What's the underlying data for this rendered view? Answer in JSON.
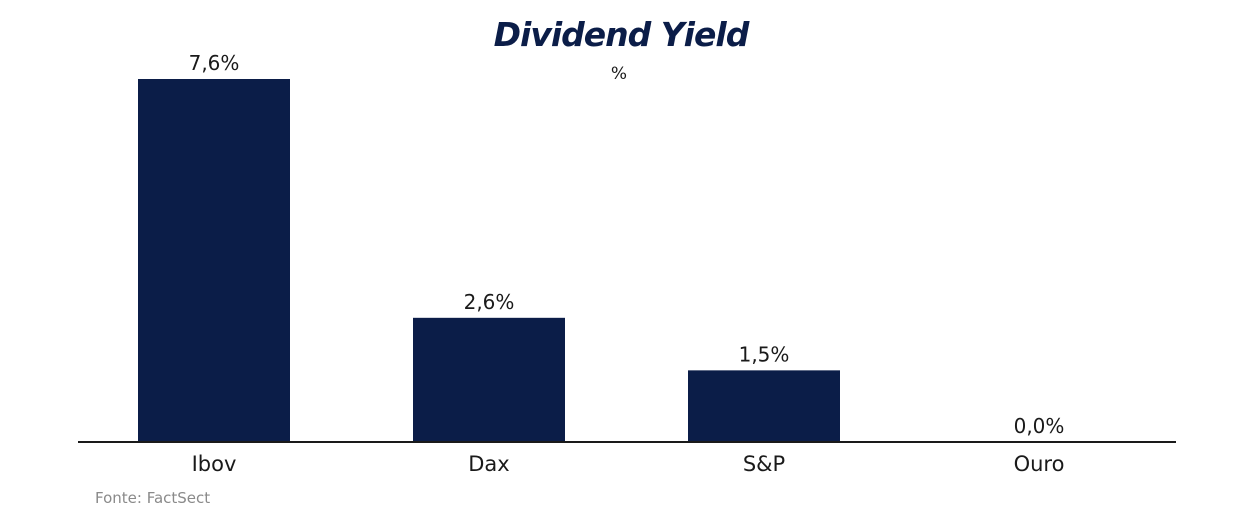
{
  "chart_data": {
    "type": "bar",
    "title": "Dividend Yield",
    "subtitle": "%",
    "categories": [
      "Ibov",
      "Dax",
      "S&P",
      "Ouro"
    ],
    "values": [
      7.6,
      2.6,
      1.5,
      0.0
    ],
    "data_labels": [
      "7,6%",
      "2,6%",
      "1,5%",
      "0,0%"
    ],
    "ylim": [
      0,
      7.6
    ],
    "grid": false,
    "legend": "none",
    "bar_color": "#0b1d48",
    "axis_color": "#1a1a1a"
  },
  "source": "Fonte: FactSect"
}
